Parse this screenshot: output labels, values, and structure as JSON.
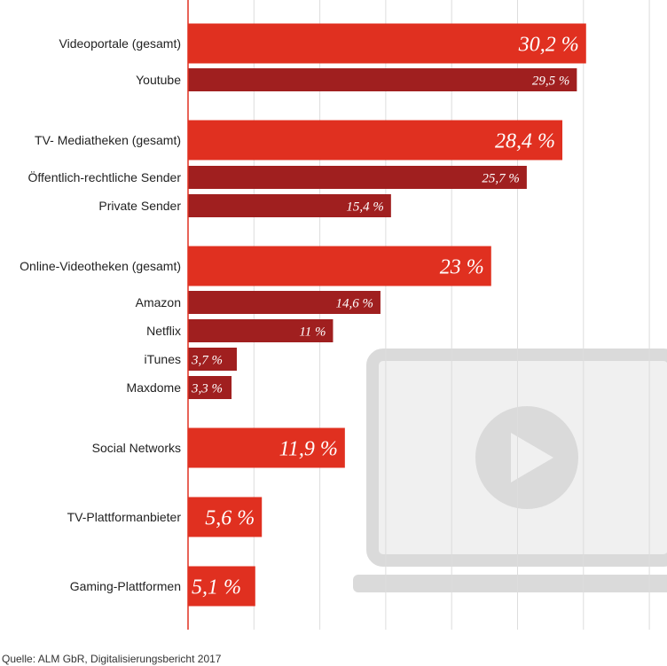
{
  "chart_data": {
    "type": "bar",
    "orientation": "horizontal",
    "xlim": [
      0,
      37
    ],
    "grid": true,
    "categories": [
      "Videoportale (gesamt)",
      "Youtube",
      "TV- Mediatheken (gesamt)",
      "Öffentlich-rechtliche Sender",
      "Private Sender",
      "Online-Videotheken (gesamt)",
      "Amazon",
      "Netflix",
      "iTunes",
      "Maxdome",
      "Social Networks",
      "TV-Plattformanbieter",
      "Gaming-Plattformen"
    ],
    "values": [
      30.2,
      29.5,
      28.4,
      25.7,
      15.4,
      23,
      14.6,
      11,
      3.7,
      3.3,
      11.9,
      5.6,
      5.1
    ],
    "value_labels": [
      "30,2 %",
      "29,5 %",
      "28,4 %",
      "25,7 %",
      "15,4 %",
      "23 %",
      "14,6 %",
      "11 %",
      "3,7 %",
      "3,3 %",
      "11,9 %",
      "5,6 %",
      "5,1 %"
    ],
    "levels": [
      "total",
      "sub",
      "total",
      "sub",
      "sub",
      "total",
      "sub",
      "sub",
      "sub",
      "sub",
      "total",
      "total",
      "total"
    ]
  },
  "colors": {
    "total_bar": "#e03020",
    "sub_bar": "#a01f1f",
    "grid": "#dddddd",
    "axis": "#e03020",
    "background_icon": "#f0f0f0",
    "background_icon_stroke": "#dadada"
  },
  "background_icon": "video-player-icon",
  "source": "Quelle: ALM GbR, Digitalisierungsbericht 2017"
}
